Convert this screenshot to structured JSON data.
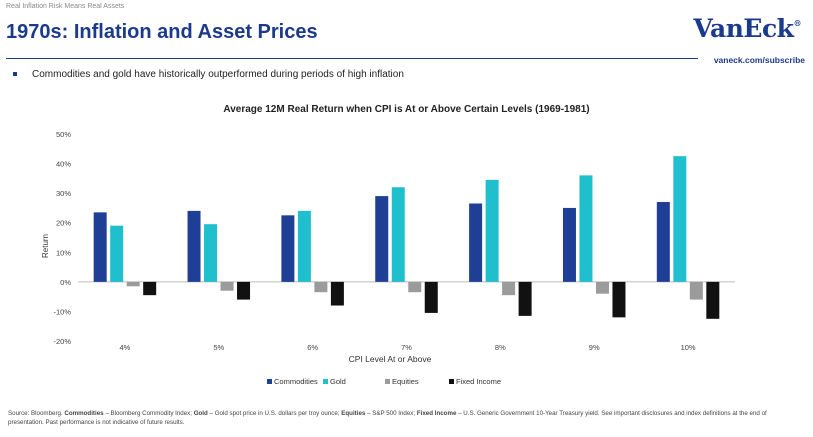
{
  "header": {
    "kicker": "Real Inflation Risk Means Real Assets",
    "title": "1970s: Inflation and Asset Prices",
    "logo": "VanEck",
    "logo_mark": "®",
    "subscribe": "vaneck.com/subscribe"
  },
  "bullet": "Commodities and gold have historically outperformed during periods of high inflation",
  "source": {
    "lead": "Source: Bloomberg. ",
    "b1": "Commodities",
    "t1": " – Bloomberg Commodity Index; ",
    "b2": "Gold",
    "t2": " – Gold spot price in U.S. dollars per troy ounce; ",
    "b3": "Equities",
    "t3": " – S&P 500 Index; ",
    "b4": "Fixed Income",
    "t4": " – U.S. Generic Government 10-Year Treasury yield. See important disclosures and index definitions at the end of presentation. Past performance is not indicative of future results."
  },
  "colors": {
    "brand": "#1b3a8c",
    "commodities": "#1f3f97",
    "gold": "#1fbfce",
    "equities": "#9b9b9b",
    "fixed_income": "#111111"
  },
  "chart_data": {
    "type": "bar",
    "title": "Average 12M Real Return when CPI is At or Above Certain Levels (1969-1981)",
    "xlabel": "CPI Level At or Above",
    "ylabel": "Return",
    "categories": [
      "4%",
      "5%",
      "6%",
      "7%",
      "8%",
      "9%",
      "10%"
    ],
    "ylim": [
      -20,
      50
    ],
    "yticks": [
      -20,
      -10,
      0,
      10,
      20,
      30,
      40,
      50
    ],
    "ytick_labels": [
      "-20%",
      "-10%",
      "0%",
      "10%",
      "20%",
      "30%",
      "40%",
      "50%"
    ],
    "grid": false,
    "legend_position": "bottom",
    "series": [
      {
        "name": "Commodities",
        "color": "#1f3f97",
        "values": [
          23.5,
          24,
          22.5,
          29,
          26.5,
          25,
          27
        ]
      },
      {
        "name": "Gold",
        "color": "#1fbfce",
        "values": [
          19,
          19.5,
          24,
          32,
          34.5,
          36,
          42.5
        ]
      },
      {
        "name": "Equities",
        "color": "#9b9b9b",
        "values": [
          -1.5,
          -3,
          -3.5,
          -3.5,
          -4.5,
          -4,
          -6
        ]
      },
      {
        "name": "Fixed Income",
        "color": "#111111",
        "values": [
          -4.5,
          -6,
          -8,
          -10.5,
          -11.5,
          -12,
          -12.5
        ]
      }
    ]
  }
}
